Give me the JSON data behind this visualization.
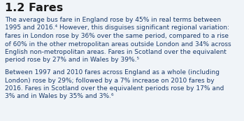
{
  "title": "1.2 Fares",
  "title_color": "#1a1a1a",
  "background_color": "#f0f4f8",
  "text_color": "#1c3c6b",
  "para1_line1": "The average bus fare in England rose by 45% in real terms between",
  "para1_line2": "1995 and 2016.⁴ However, this disguises significant regional variation:",
  "para1_line3": "fares in London rose by 36% over the same period, compared to a rise",
  "para1_line4": "of 60% in the other metropolitan areas outside London and 34% across",
  "para1_line5": "English non-metropolitan areas. Fares in Scotland over the equivalent",
  "para1_line6": "period rose by 27% and in Wales by 39%.⁵",
  "para2_line1": "Between 1997 and 2010 fares across England as a whole (including",
  "para2_line2": "London) rose by 29%; followed by a 7% increase on 2010 fares by",
  "para2_line3": "2016. Fares in Scotland over the equivalent periods rose by 17% and",
  "para2_line4": "3% and in Wales by 35% and 3%.⁶",
  "title_fontsize": 11.5,
  "body_fontsize": 6.5,
  "figwidth": 3.49,
  "figheight": 1.73,
  "dpi": 100
}
